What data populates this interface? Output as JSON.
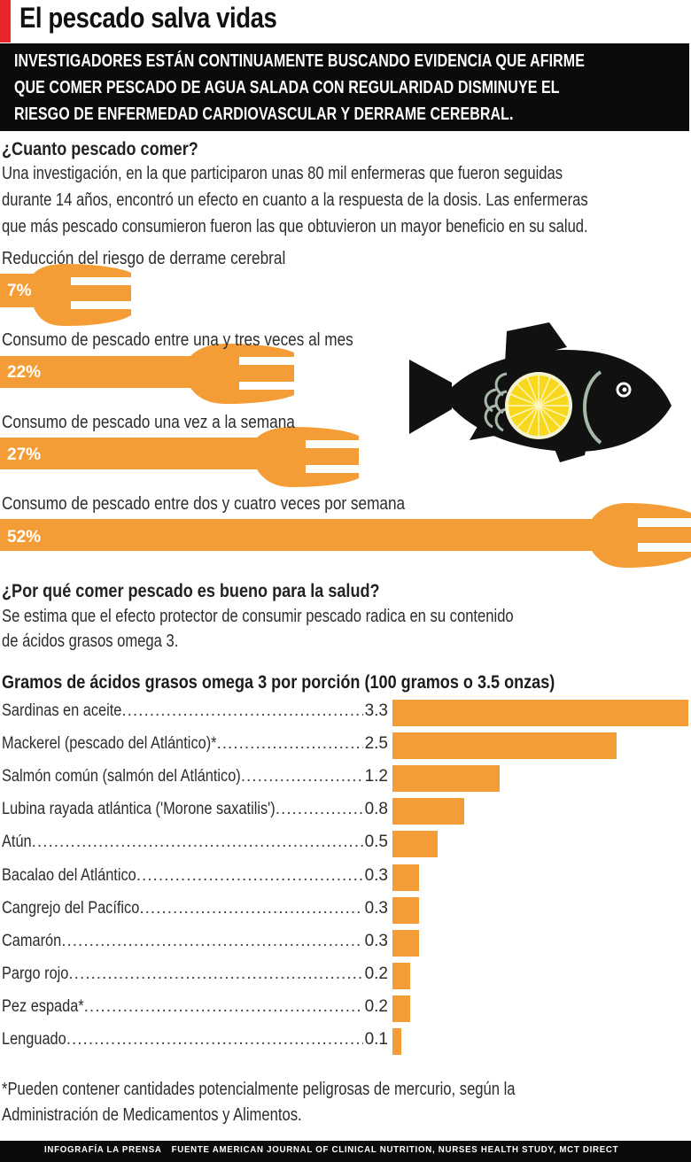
{
  "header": {
    "title": "El pescado salva vidas",
    "deck_lines": [
      "INVESTIGADORES ESTÁN CONTINUAMENTE BUSCANDO EVIDENCIA QUE AFIRME",
      "QUE COMER PESCADO DE AGUA SALADA CON REGULARIDAD DISMINUYE EL",
      "RIESGO DE ENFERMEDAD CARDIOVASCULAR Y DERRAME CEREBRAL."
    ],
    "accent_color": "#e8262a"
  },
  "section1": {
    "heading": "¿Cuanto pescado comer?",
    "body_lines": [
      "Una investigación, en la que participaron unas 80 mil enfermeras que fueron seguidas",
      "durante 14 años, encontró un efecto en cuanto a la respuesta de la dosis. Las enfermeras",
      "que más pescado consumieron fueron las que obtuvieron un mayor beneficio en su salud."
    ],
    "forks": [
      {
        "label": "Reducción del riesgo de derrame cerebral",
        "value": "7%"
      },
      {
        "label": "Consumo de pescado entre una y tres veces al mes",
        "value": "22%"
      },
      {
        "label": "Consumo de pescado una vez a la semana",
        "value": "27%"
      },
      {
        "label": "Consumo de pescado entre dos y cuatro veces por semana",
        "value": "52%"
      }
    ],
    "illustration": "fish-with-lemon-icon"
  },
  "section2": {
    "heading": "¿Por qué comer pescado es bueno para la salud?",
    "body_lines": [
      "Se estima que el efecto protector de consumir pescado radica en su contenido",
      "de ácidos grasos omega 3."
    ]
  },
  "chart_data": [
    {
      "type": "bar",
      "title": "Reducción del riesgo de derrame cerebral",
      "orientation": "horizontal",
      "categories": [
        "Consumo de pescado entre una y tres veces al mes",
        "Consumo de pescado una vez a la semana",
        "Consumo de pescado entre dos y cuatro veces por semana"
      ],
      "values": [
        22,
        27,
        52
      ],
      "baseline_label": "Reducción del riesgo de derrame cerebral",
      "baseline_value": 7,
      "unit": "%",
      "color": "#f49d37"
    },
    {
      "type": "bar",
      "title": "Gramos de ácidos grasos omega 3 por porción (100 gramos o 3.5 onzas)",
      "orientation": "horizontal",
      "xlabel": "",
      "ylabel": "",
      "categories": [
        "Sardinas en aceite",
        "Mackerel (pescado del Atlántico)*",
        "Salmón común (salmón del Atlántico)",
        "Lubina rayada atlántica ('Morone saxatilis')",
        "Atún",
        "Bacalao del Atlántico",
        "Cangrejo del Pacífico",
        "Camarón",
        "Pargo rojo",
        "Pez espada*",
        "Lenguado"
      ],
      "values": [
        3.3,
        2.5,
        1.2,
        0.8,
        0.5,
        0.3,
        0.3,
        0.3,
        0.2,
        0.2,
        0.1
      ],
      "value_labels": [
        "3.3",
        "2.5",
        "1.2",
        "0.8",
        "0.5",
        "0.3",
        "0.3",
        "0.3",
        "0.2",
        "0.2",
        "0.1"
      ],
      "xlim": [
        0,
        3.3
      ],
      "grid": false,
      "color": "#f49d37"
    }
  ],
  "chart": {
    "title": "Gramos de ácidos grasos omega 3 por porción (100 gramos o 3.5 onzas)",
    "rows": [
      {
        "name": "Sardinas en aceite",
        "value": "3.3"
      },
      {
        "name": "Mackerel (pescado del Atlántico)*",
        "value": "2.5"
      },
      {
        "name": "Salmón común (salmón del Atlántico)",
        "value": "1.2"
      },
      {
        "name": "Lubina rayada atlántica ('Morone saxatilis')",
        "value": "0.8"
      },
      {
        "name": "Atún",
        "value": "0.5"
      },
      {
        "name": "Bacalao del Atlántico",
        "value": "0.3"
      },
      {
        "name": "Cangrejo del Pacífico",
        "value": "0.3"
      },
      {
        "name": "Camarón",
        "value": "0.3"
      },
      {
        "name": "Pargo rojo",
        "value": "0.2"
      },
      {
        "name": "Pez espada*",
        "value": "0.2"
      },
      {
        "name": "Lenguado",
        "value": "0.1"
      }
    ]
  },
  "note_lines": [
    "*Pueden contener cantidades potencialmente peligrosas de mercurio, según la",
    "Administración de Medicamentos y Alimentos."
  ],
  "footer": {
    "credit": "INFOGRAFÍA LA PRENSA",
    "source": "FUENTE AMERICAN JOURNAL OF CLINICAL NUTRITION, NURSES HEALTH STUDY, MCT DIRECT"
  },
  "colors": {
    "orange": "#f49d37",
    "black": "#0b0b0b",
    "red": "#e8262a",
    "lemon": "#f7d81c"
  }
}
